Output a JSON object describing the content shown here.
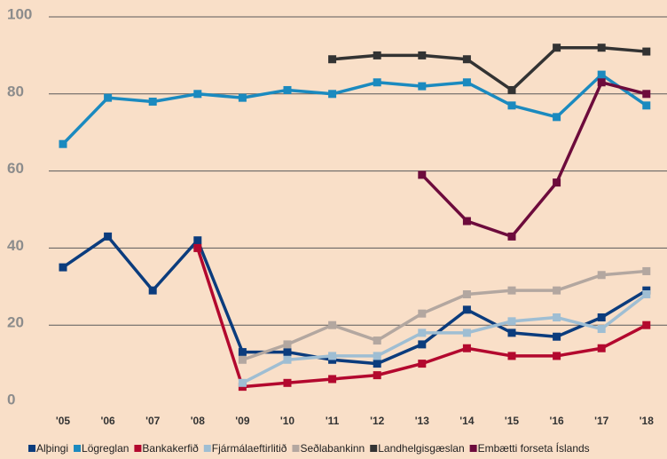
{
  "chart_data": {
    "type": "line",
    "categories": [
      "'05",
      "'06",
      "'07",
      "'08",
      "'09",
      "'10",
      "'11",
      "'12",
      "'13",
      "'14",
      "'15",
      "'16",
      "'17",
      "'18"
    ],
    "series": [
      {
        "name": "Alþingi",
        "color": "#0b3c7d",
        "values": [
          35,
          43,
          29,
          42,
          13,
          13,
          11,
          10,
          15,
          24,
          18,
          17,
          22,
          29
        ]
      },
      {
        "name": "Lögreglan",
        "color": "#1b8abf",
        "values": [
          67,
          79,
          78,
          80,
          79,
          81,
          80,
          83,
          82,
          83,
          77,
          74,
          85,
          77
        ]
      },
      {
        "name": "Bankakerfið",
        "color": "#b3082e",
        "values": [
          null,
          null,
          null,
          40,
          4,
          5,
          6,
          7,
          10,
          14,
          12,
          12,
          14,
          20
        ]
      },
      {
        "name": "Fjármálaeftirlitið",
        "color": "#9fbed3",
        "values": [
          null,
          null,
          null,
          null,
          5,
          11,
          12,
          12,
          18,
          18,
          21,
          22,
          19,
          28
        ]
      },
      {
        "name": "Seðlabankinn",
        "color": "#b3a7a0",
        "values": [
          null,
          null,
          null,
          null,
          11,
          15,
          20,
          16,
          23,
          28,
          29,
          29,
          33,
          34
        ]
      },
      {
        "name": "Landhelgisgæslan",
        "color": "#333333",
        "values": [
          null,
          null,
          null,
          null,
          null,
          null,
          89,
          90,
          90,
          89,
          81,
          92,
          92,
          91
        ]
      },
      {
        "name": "Embætti forseta Íslands",
        "color": "#6d0b3c",
        "values": [
          null,
          null,
          null,
          null,
          null,
          null,
          null,
          null,
          59,
          47,
          43,
          57,
          83,
          80
        ]
      }
    ],
    "ylim": [
      0,
      100
    ],
    "yticks": [
      0,
      20,
      40,
      60,
      80,
      100
    ],
    "grid": true,
    "legend": "bottom"
  }
}
